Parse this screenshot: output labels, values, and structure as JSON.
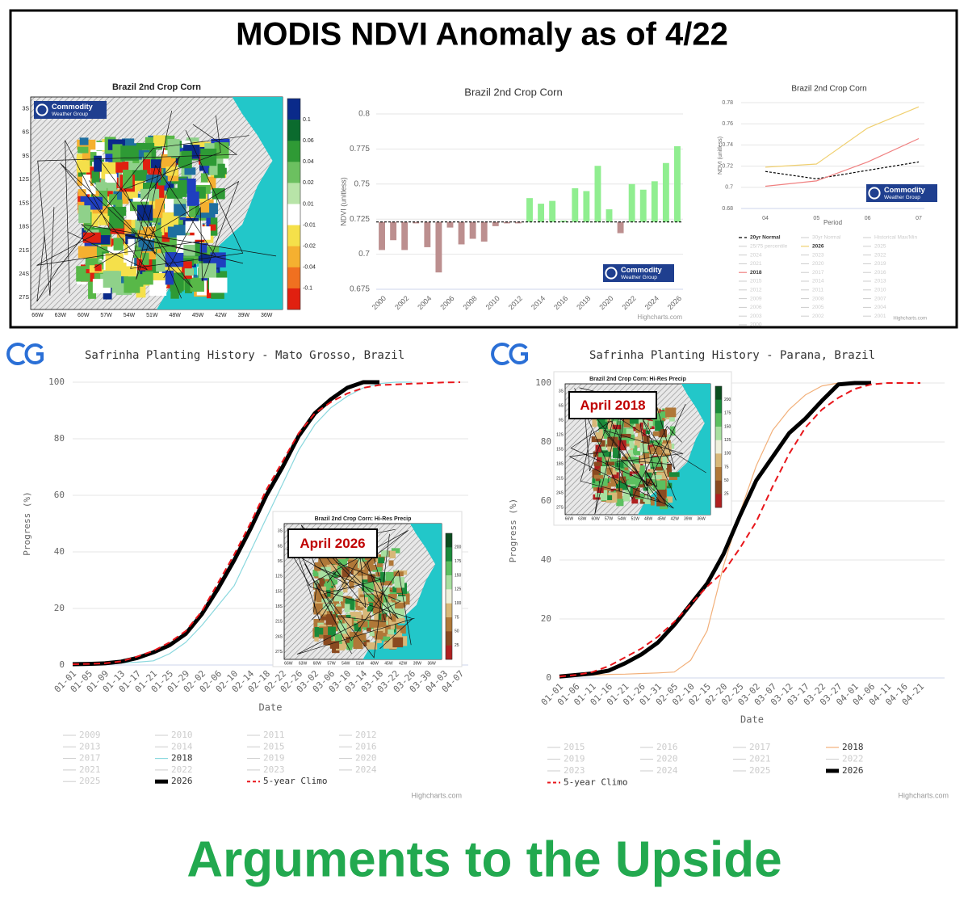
{
  "header": {
    "title": "MODIS NDVI Anomaly as of 4/22"
  },
  "footer": {
    "title": "Arguments to the Upside"
  },
  "logo": {
    "name": "Commodity",
    "sub": "Weather Group"
  },
  "maps": [
    {
      "title": "Brazil 2nd Crop Corn",
      "lat_labels": [
        "3S",
        "6S",
        "9S",
        "12S",
        "15S",
        "18S",
        "21S",
        "24S",
        "27S"
      ],
      "lon_labels": [
        "66W",
        "63W",
        "60W",
        "57W",
        "54W",
        "51W",
        "48W",
        "45W",
        "42W",
        "39W",
        "36W"
      ],
      "colorbar_ticks": [
        0.1,
        0.06,
        0.04,
        0.02,
        0.01,
        -0.01,
        -0.02,
        -0.04,
        -0.1
      ]
    },
    {
      "title": "Brazil 2nd Crop Corn: Hi-Res Precip",
      "label": "April 2026",
      "lat_labels": [
        "3S",
        "6S",
        "9S",
        "12S",
        "15S",
        "18S",
        "21S",
        "24S",
        "27S"
      ],
      "lon_labels": [
        "66W",
        "63W",
        "60W",
        "57W",
        "54W",
        "51W",
        "48W",
        "45W",
        "42W",
        "39W",
        "36W"
      ],
      "colorbar_ticks": [
        200,
        175,
        150,
        125,
        100,
        75,
        50,
        25
      ]
    },
    {
      "title": "Brazil 2nd Crop Corn: Hi-Res Precip",
      "label": "April 2018",
      "lat_labels": [
        "3S",
        "6S",
        "9S",
        "12S",
        "15S",
        "18S",
        "21S",
        "24S",
        "27S"
      ],
      "lon_labels": [
        "66W",
        "63W",
        "60W",
        "57W",
        "54W",
        "51W",
        "48W",
        "45W",
        "42W",
        "39W",
        "36W"
      ],
      "colorbar_ticks": [
        200,
        175,
        150,
        125,
        100,
        75,
        50,
        25
      ]
    }
  ],
  "chart_data": [
    {
      "type": "bar",
      "title": "Brazil 2nd Crop Corn",
      "ylabel": "NDVI (unitless)",
      "categories": [
        "2000",
        null,
        "2002",
        null,
        "2004",
        null,
        "2006",
        null,
        "2008",
        null,
        "2010",
        null,
        "2012",
        null,
        "2014",
        null,
        "2016",
        null,
        "2018",
        null,
        "2020",
        null,
        "2022",
        null,
        "2024",
        null,
        "2026"
      ],
      "values": [
        0.703,
        0.71,
        0.703,
        0.722,
        0.705,
        0.687,
        0.719,
        0.707,
        0.711,
        0.709,
        0.72,
        0.722,
        0.722,
        0.74,
        0.736,
        0.738,
        0.724,
        0.747,
        0.745,
        0.763,
        0.732,
        0.715,
        0.75,
        0.746,
        0.752,
        0.765,
        0.777
      ],
      "normal": 0.723,
      "colors": {
        "above": "#90ee90",
        "below": "#bc8f8f"
      },
      "ylim": [
        0.675,
        0.8
      ],
      "yticks": [
        0.675,
        0.7,
        0.725,
        0.75,
        0.775,
        0.8
      ],
      "grid": true,
      "credit": "Highcharts.com"
    },
    {
      "type": "line",
      "title": "Brazil 2nd Crop Corn",
      "ylabel": "NDVI (unitless)",
      "xlabel": "Period",
      "categories": [
        "04",
        "05",
        "06",
        "07"
      ],
      "ylim": [
        0.68,
        0.78
      ],
      "yticks": [
        0.68,
        0.7,
        0.72,
        0.74,
        0.76,
        0.78
      ],
      "grid": true,
      "credit": "Highcharts.com",
      "series": [
        {
          "name": "20yr Normal",
          "visible": true,
          "color": "#000000",
          "dash": true,
          "values": [
            0.715,
            0.708,
            0.716,
            0.724
          ]
        },
        {
          "name": "30yr Normal",
          "visible": false
        },
        {
          "name": "Historical Max/Min",
          "visible": false
        },
        {
          "name": "25/75 percentile",
          "visible": false
        },
        {
          "name": "2026",
          "visible": true,
          "color": "#f0d070",
          "values": [
            0.719,
            0.722,
            0.756,
            0.776
          ]
        },
        {
          "name": "2025",
          "visible": false
        },
        {
          "name": "2024",
          "visible": false
        },
        {
          "name": "2023",
          "visible": false
        },
        {
          "name": "2022",
          "visible": false
        },
        {
          "name": "2021",
          "visible": false
        },
        {
          "name": "2020",
          "visible": false
        },
        {
          "name": "2019",
          "visible": false
        },
        {
          "name": "2018",
          "visible": true,
          "color": "#f08080",
          "values": [
            0.701,
            0.706,
            0.724,
            0.746
          ]
        },
        {
          "name": "2017",
          "visible": false
        },
        {
          "name": "2016",
          "visible": false
        },
        {
          "name": "2015",
          "visible": false
        },
        {
          "name": "2014",
          "visible": false
        },
        {
          "name": "2013",
          "visible": false
        },
        {
          "name": "2012",
          "visible": false
        },
        {
          "name": "2011",
          "visible": false
        },
        {
          "name": "2010",
          "visible": false
        },
        {
          "name": "2009",
          "visible": false
        },
        {
          "name": "2008",
          "visible": false
        },
        {
          "name": "2007",
          "visible": false
        },
        {
          "name": "2006",
          "visible": false
        },
        {
          "name": "2005",
          "visible": false
        },
        {
          "name": "2004",
          "visible": false
        },
        {
          "name": "2003",
          "visible": false
        },
        {
          "name": "2002",
          "visible": false
        },
        {
          "name": "2001",
          "visible": false
        },
        {
          "name": "2000",
          "visible": false
        }
      ]
    },
    {
      "type": "line",
      "title": "Safrinha Planting History - Mato Grosso, Brazil",
      "ylabel": "Progress (%)",
      "xlabel": "Date",
      "categories": [
        "01-01",
        "01-05",
        "01-09",
        "01-13",
        "01-17",
        "01-21",
        "01-25",
        "01-29",
        "02-02",
        "02-06",
        "02-10",
        "02-14",
        "02-18",
        "02-22",
        "02-26",
        "03-02",
        "03-06",
        "03-10",
        "03-14",
        "03-18",
        "03-22",
        "03-26",
        "03-30",
        "04-03",
        "04-07"
      ],
      "ylim": [
        0,
        100
      ],
      "yticks": [
        0,
        20,
        40,
        60,
        80,
        100
      ],
      "grid": true,
      "credit": "Highcharts.com",
      "series": [
        {
          "name": "2009",
          "visible": false
        },
        {
          "name": "2010",
          "visible": false
        },
        {
          "name": "2011",
          "visible": false
        },
        {
          "name": "2012",
          "visible": false
        },
        {
          "name": "2013",
          "visible": false
        },
        {
          "name": "2014",
          "visible": false
        },
        {
          "name": "2015",
          "visible": false
        },
        {
          "name": "2016",
          "visible": false
        },
        {
          "name": "2017",
          "visible": false
        },
        {
          "name": "2018",
          "visible": true,
          "color": "#8ad8de",
          "width": 1.2,
          "values": [
            0.3,
            0.4,
            0.5,
            0.7,
            1,
            1.5,
            4,
            8,
            14,
            21,
            28,
            40,
            52,
            64,
            76,
            85,
            91,
            95,
            98,
            99.5,
            100,
            100,
            null,
            null,
            null
          ]
        },
        {
          "name": "2019",
          "visible": false
        },
        {
          "name": "2020",
          "visible": false
        },
        {
          "name": "2021",
          "visible": false
        },
        {
          "name": "2022",
          "visible": false
        },
        {
          "name": "2023",
          "visible": false
        },
        {
          "name": "2024",
          "visible": false
        },
        {
          "name": "2025",
          "visible": false
        },
        {
          "name": "2026",
          "visible": true,
          "color": "#000000",
          "width": 5,
          "values": [
            0.3,
            0.4,
            0.6,
            1.2,
            2.5,
            4.5,
            7,
            11,
            18,
            27,
            37,
            48,
            60,
            70,
            81,
            89,
            94,
            98,
            100,
            100,
            null,
            null,
            null,
            null,
            null
          ]
        },
        {
          "name": "5-year Climo",
          "visible": true,
          "color": "#e8161b",
          "dash": true,
          "width": 2,
          "values": [
            0.3,
            0.4,
            0.6,
            1.3,
            3,
            5,
            8,
            12,
            19,
            29,
            39,
            50,
            62,
            72,
            82,
            89,
            93,
            96,
            98,
            99,
            99.2,
            99.5,
            99.7,
            99.9,
            100
          ]
        }
      ]
    },
    {
      "type": "line",
      "title": "Safrinha Planting History - Parana, Brazil",
      "ylabel": "Progress (%)",
      "xlabel": "Date",
      "categories": [
        "01-01",
        "01-06",
        "01-11",
        "01-16",
        "01-21",
        "01-26",
        "01-31",
        "02-05",
        "02-10",
        "02-15",
        "02-20",
        "02-25",
        "03-02",
        "03-07",
        "03-12",
        "03-17",
        "03-22",
        "03-27",
        "04-01",
        "04-06",
        "04-11",
        "04-16",
        "04-21"
      ],
      "ylim": [
        0,
        100
      ],
      "yticks": [
        0,
        20,
        40,
        60,
        80,
        100
      ],
      "grid": true,
      "credit": "Highcharts.com",
      "series": [
        {
          "name": "2015",
          "visible": false
        },
        {
          "name": "2016",
          "visible": false
        },
        {
          "name": "2017",
          "visible": false
        },
        {
          "name": "2018",
          "visible": true,
          "color": "#f2b07a",
          "width": 1.2,
          "values": [
            0.5,
            0.8,
            1,
            1.2,
            1.3,
            1.5,
            1.7,
            2,
            6,
            16,
            38,
            56,
            72,
            84,
            91,
            96,
            99,
            100,
            null,
            null,
            null,
            null,
            null
          ]
        },
        {
          "name": "2019",
          "visible": false
        },
        {
          "name": "2020",
          "visible": false
        },
        {
          "name": "2021",
          "visible": false
        },
        {
          "name": "2022",
          "visible": false
        },
        {
          "name": "2023",
          "visible": false
        },
        {
          "name": "2024",
          "visible": false
        },
        {
          "name": "2025",
          "visible": false
        },
        {
          "name": "2026",
          "visible": true,
          "color": "#000000",
          "width": 5,
          "values": [
            0.5,
            1,
            1.5,
            2.5,
            5,
            8,
            12,
            18,
            25,
            32,
            42,
            55,
            67,
            75,
            83,
            88,
            94,
            99.5,
            100,
            100,
            null,
            null,
            null
          ]
        },
        {
          "name": "5-year Climo",
          "visible": true,
          "color": "#e8161b",
          "dash": true,
          "width": 2,
          "values": [
            0.5,
            1,
            2,
            4,
            7,
            10,
            14,
            19,
            25,
            31,
            36,
            44,
            53,
            65,
            76,
            85,
            91,
            95,
            98,
            99.5,
            100,
            100,
            100
          ]
        }
      ]
    }
  ]
}
